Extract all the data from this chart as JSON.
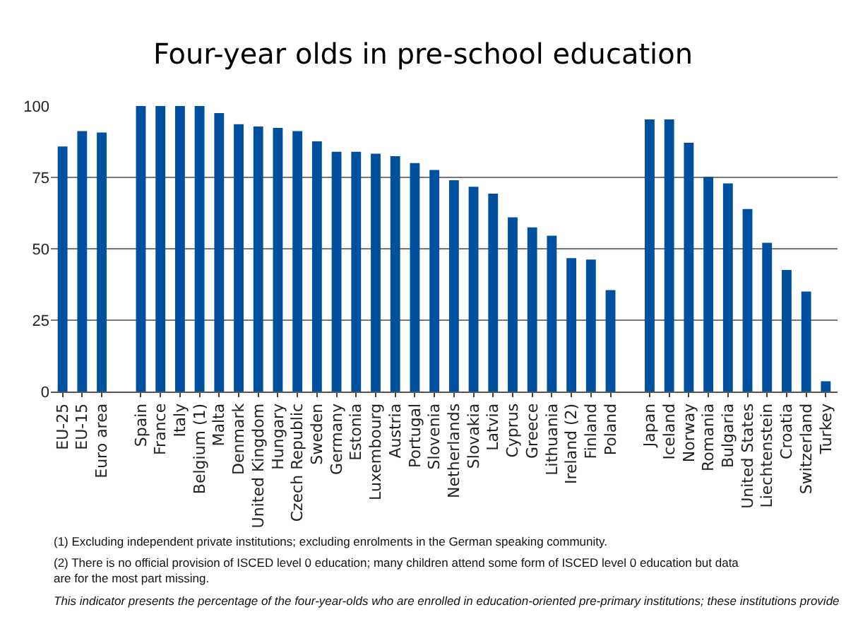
{
  "chart_data": {
    "type": "bar",
    "title": "Four-year olds in pre-school education",
    "categories": [
      "EU-25",
      "EU-15",
      "Euro area",
      null,
      "Spain",
      "France",
      "Italy",
      "Belgium (1)",
      "Malta",
      "Denmark",
      "United Kingdom",
      "Hungary",
      "Czech Republic",
      "Sweden",
      "Germany",
      "Estonia",
      "Luxembourg",
      "Austria",
      "Portugal",
      "Slovenia",
      "Netherlands",
      "Slovakia",
      "Latvia",
      "Cyprus",
      "Greece",
      "Lithuania",
      "Ireland (2)",
      "Finland",
      "Poland",
      null,
      "Japan",
      "Iceland",
      "Norway",
      "Romania",
      "Bulgaria",
      "United States",
      "Liechtenstein",
      "Croatia",
      "Switzerland",
      "Turkey"
    ],
    "values": [
      85.8,
      91.2,
      90.7,
      null,
      100,
      100,
      100,
      100,
      97.5,
      93.6,
      92.8,
      92.3,
      91.2,
      87.6,
      84,
      84,
      83.3,
      82.4,
      80,
      77.6,
      74,
      71.7,
      69.3,
      61,
      57.5,
      54.6,
      46.7,
      46.2,
      35.5,
      null,
      95.3,
      95.3,
      87.1,
      75.2,
      72.9,
      63.9,
      52.1,
      42.6,
      35,
      3.6
    ],
    "color": "#0050a0",
    "ylim": [
      0,
      100
    ],
    "yticks": [
      0,
      25,
      50,
      75,
      100
    ],
    "grid": "y",
    "annotations": [
      "(1) Excluding independent private institutions; excluding enrolments in the German speaking community.",
      "(2) There is no official provision of ISCED level 0 education; many children attend some form of ISCED level 0 education but data are for the most part missing.",
      "This indicator presents the percentage of the four-year-olds who are enrolled in education-oriented pre-primary institutions; these institutions provide"
    ]
  }
}
